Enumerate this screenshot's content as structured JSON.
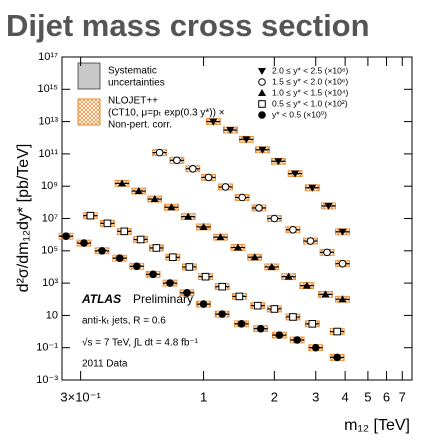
{
  "chart_data": {
    "type": "scatter",
    "title": "Dijet mass cross section",
    "x_label": "m₁₂ [TeV]",
    "y_label": "d²σ/dm₁₂dy* [pb/TeV]",
    "log_x": true,
    "log_y": true,
    "xlim": [
      0.25,
      7.7
    ],
    "ylim": [
      0.001,
      1e+17
    ],
    "xticks": [
      {
        "value": 0.3,
        "label": "3×10⁻¹"
      },
      1,
      2,
      3,
      4,
      5,
      6,
      7
    ],
    "yticks": [
      {
        "value": 0.001,
        "label": "10⁻³"
      },
      {
        "value": 0.1,
        "label": "10⁻¹"
      },
      10,
      {
        "value": 1000,
        "label": "10³"
      },
      {
        "value": 100000,
        "label": "10⁵"
      },
      {
        "value": 10000000,
        "label": "10⁷"
      },
      {
        "value": 1000000000,
        "label": "10⁹"
      },
      {
        "value": 100000000000,
        "label": "10¹¹"
      },
      {
        "value": 10000000000000,
        "label": "10¹³"
      },
      {
        "value": 1000000000000000,
        "label": "10¹⁵"
      },
      {
        "value": 1e+17,
        "label": "10¹⁷"
      }
    ],
    "systematic_label": [
      "Systematic",
      "uncertainties"
    ],
    "theory_label": [
      "NLOJET++",
      "(CT10, μ=pₜ exp(0.3 y*)) ×",
      "Non-pert. corr."
    ],
    "experiment": "ATLAS",
    "status": "Preliminary",
    "annotations": [
      "anti-kₜ jets, R = 0.6",
      "√s = 7 TeV, ∫L dt = 4.8 fb⁻¹",
      "2011 Data"
    ],
    "series": [
      {
        "name": "2.0 ≤ y* < 2.5 (×10⁸)",
        "marker": "triangle-down",
        "color": "#000000",
        "x": [
          1.1,
          1.3,
          1.52,
          1.78,
          2.08,
          2.45,
          2.9,
          3.4,
          3.9
        ],
        "values": [
          10000000000000.0,
          3000000000000.0,
          800000000000.0,
          180000000000.0,
          35000000000.0,
          6000000000.0,
          800000000.0,
          60000000.0,
          1500000.0
        ]
      },
      {
        "name": "1.5 ≤ y* < 2.0 (×10⁶)",
        "marker": "circle-open",
        "color": "#000000",
        "x": [
          0.65,
          0.77,
          0.9,
          1.05,
          1.24,
          1.46,
          1.72,
          2.0,
          2.4,
          2.85,
          3.35,
          3.9
        ],
        "values": [
          120000000000.0,
          40000000000.0,
          12000000000.0,
          3500000000.0,
          900000000.0,
          200000000.0,
          45000000.0,
          10000000.0,
          2000000.0,
          400000.0,
          80000.0,
          16000.0
        ]
      },
      {
        "name": "1.0 ≤ y* < 1.5 (×10⁴)",
        "marker": "triangle-up",
        "color": "#000000",
        "x": [
          0.45,
          0.53,
          0.62,
          0.73,
          0.86,
          1.0,
          1.18,
          1.4,
          1.65,
          1.95,
          2.3,
          2.75,
          3.3,
          3.9
        ],
        "values": [
          1500000000.0,
          500000000.0,
          160000000.0,
          50000000.0,
          13000000.0,
          3000000.0,
          700000.0,
          160000.0,
          40000.0,
          10000.0,
          2500,
          700,
          200,
          100
        ]
      },
      {
        "name": "0.5 ≤ y* < 1.0 (×10²)",
        "marker": "square-open",
        "color": "#000000",
        "x": [
          0.33,
          0.39,
          0.46,
          0.54,
          0.63,
          0.74,
          0.87,
          1.02,
          1.2,
          1.42,
          1.7,
          2.0,
          2.4,
          2.9,
          3.7
        ],
        "values": [
          15000000.0,
          5000000.0,
          1600000.0,
          500000.0,
          150000.0,
          40000.0,
          10000.0,
          2500,
          600,
          150,
          40,
          25,
          8,
          3,
          1
        ]
      },
      {
        "name": "y* < 0.5 (×10⁰)",
        "marker": "circle",
        "color": "#000000",
        "x": [
          0.26,
          0.31,
          0.37,
          0.44,
          0.52,
          0.61,
          0.72,
          0.85,
          1.0,
          1.2,
          1.45,
          1.75,
          2.1,
          2.5,
          3.0,
          3.7
        ],
        "values": [
          800000.0,
          300000.0,
          100000.0,
          35000.0,
          11000.0,
          3500,
          1000,
          250,
          50,
          12,
          3,
          1.5,
          0.6,
          0.3,
          0.1,
          0.025
        ]
      }
    ]
  }
}
